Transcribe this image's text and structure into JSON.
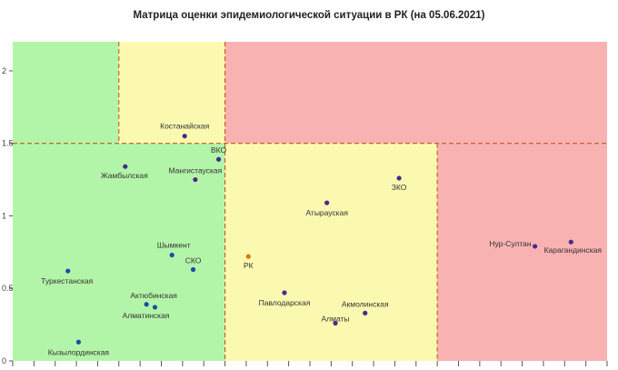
{
  "chart_data": {
    "type": "scatter",
    "title": "Матрица оценки эпидемиологической ситуации в РК (на 05.06.2021)",
    "xlabel": "",
    "ylabel": "",
    "xlim": [
      0,
      28
    ],
    "ylim": [
      0,
      2.2
    ],
    "grid": false,
    "y_tick_labels": [
      "0",
      "0.5",
      "1",
      "1.5",
      "2"
    ],
    "x_thresholds": [
      5,
      10,
      20
    ],
    "y_thresholds": [
      1.5
    ],
    "zones": [
      {
        "x": [
          0,
          5
        ],
        "y": [
          1.5,
          2.2
        ],
        "color": "#b3f5a8"
      },
      {
        "x": [
          5,
          10
        ],
        "y": [
          1.5,
          2.2
        ],
        "color": "#fbf9b0"
      },
      {
        "x": [
          10,
          28
        ],
        "y": [
          1.5,
          2.2
        ],
        "color": "#f8b2b2"
      },
      {
        "x": [
          0,
          10
        ],
        "y": [
          0,
          1.5
        ],
        "color": "#b3f5a8"
      },
      {
        "x": [
          10,
          20
        ],
        "y": [
          0,
          1.5
        ],
        "color": "#fbf9b0"
      },
      {
        "x": [
          20,
          28
        ],
        "y": [
          0,
          1.5
        ],
        "color": "#f8b2b2"
      }
    ],
    "points": [
      {
        "label": "Костанайская",
        "x": 8.1,
        "y": 1.55,
        "color": "#4a2a8a",
        "anchor": "middle"
      },
      {
        "label": "ВКО",
        "x": 9.7,
        "y": 1.39,
        "color": "#4a2a8a",
        "anchor": "middle"
      },
      {
        "label": "Жамбылская",
        "x": 5.3,
        "y": 1.34,
        "color": "#4a2a8a",
        "anchor": "middle"
      },
      {
        "label": "Мангистауская",
        "x": 8.6,
        "y": 1.25,
        "color": "#4a2a8a",
        "anchor": "middle"
      },
      {
        "label": "ЗКО",
        "x": 18.2,
        "y": 1.26,
        "color": "#4a2a8a",
        "anchor": "middle"
      },
      {
        "label": "Атырауская",
        "x": 14.8,
        "y": 1.09,
        "color": "#4a2a8a",
        "anchor": "middle"
      },
      {
        "label": "Нур-Султан",
        "x": 24.6,
        "y": 0.79,
        "color": "#4a2a8a",
        "anchor": "end"
      },
      {
        "label": "Карагандинская",
        "x": 26.3,
        "y": 0.82,
        "color": "#4a2a8a",
        "anchor": "middle"
      },
      {
        "label": "Шымкент",
        "x": 7.5,
        "y": 0.73,
        "color": "#1a4da8",
        "anchor": "middle"
      },
      {
        "label": "РК",
        "x": 11.1,
        "y": 0.72,
        "color": "#d87a10",
        "anchor": "middle"
      },
      {
        "label": "СКО",
        "x": 8.5,
        "y": 0.63,
        "color": "#1a4da8",
        "anchor": "middle"
      },
      {
        "label": "Туркестанская",
        "x": 2.6,
        "y": 0.62,
        "color": "#1a4da8",
        "anchor": "middle"
      },
      {
        "label": "Павлодарская",
        "x": 12.8,
        "y": 0.47,
        "color": "#4a2a8a",
        "anchor": "middle"
      },
      {
        "label": "Актюбинская",
        "x": 6.3,
        "y": 0.39,
        "color": "#1a4da8",
        "anchor": "middle"
      },
      {
        "label": "Алматинская",
        "x": 6.7,
        "y": 0.37,
        "color": "#1a4da8",
        "anchor": "middle"
      },
      {
        "label": "Акмолинская",
        "x": 16.6,
        "y": 0.33,
        "color": "#4a2a8a",
        "anchor": "middle"
      },
      {
        "label": "Алматы",
        "x": 15.2,
        "y": 0.26,
        "color": "#4a2a8a",
        "anchor": "middle"
      },
      {
        "label": "Кызылординская",
        "x": 3.1,
        "y": 0.13,
        "color": "#1a4da8",
        "anchor": "middle"
      }
    ]
  }
}
